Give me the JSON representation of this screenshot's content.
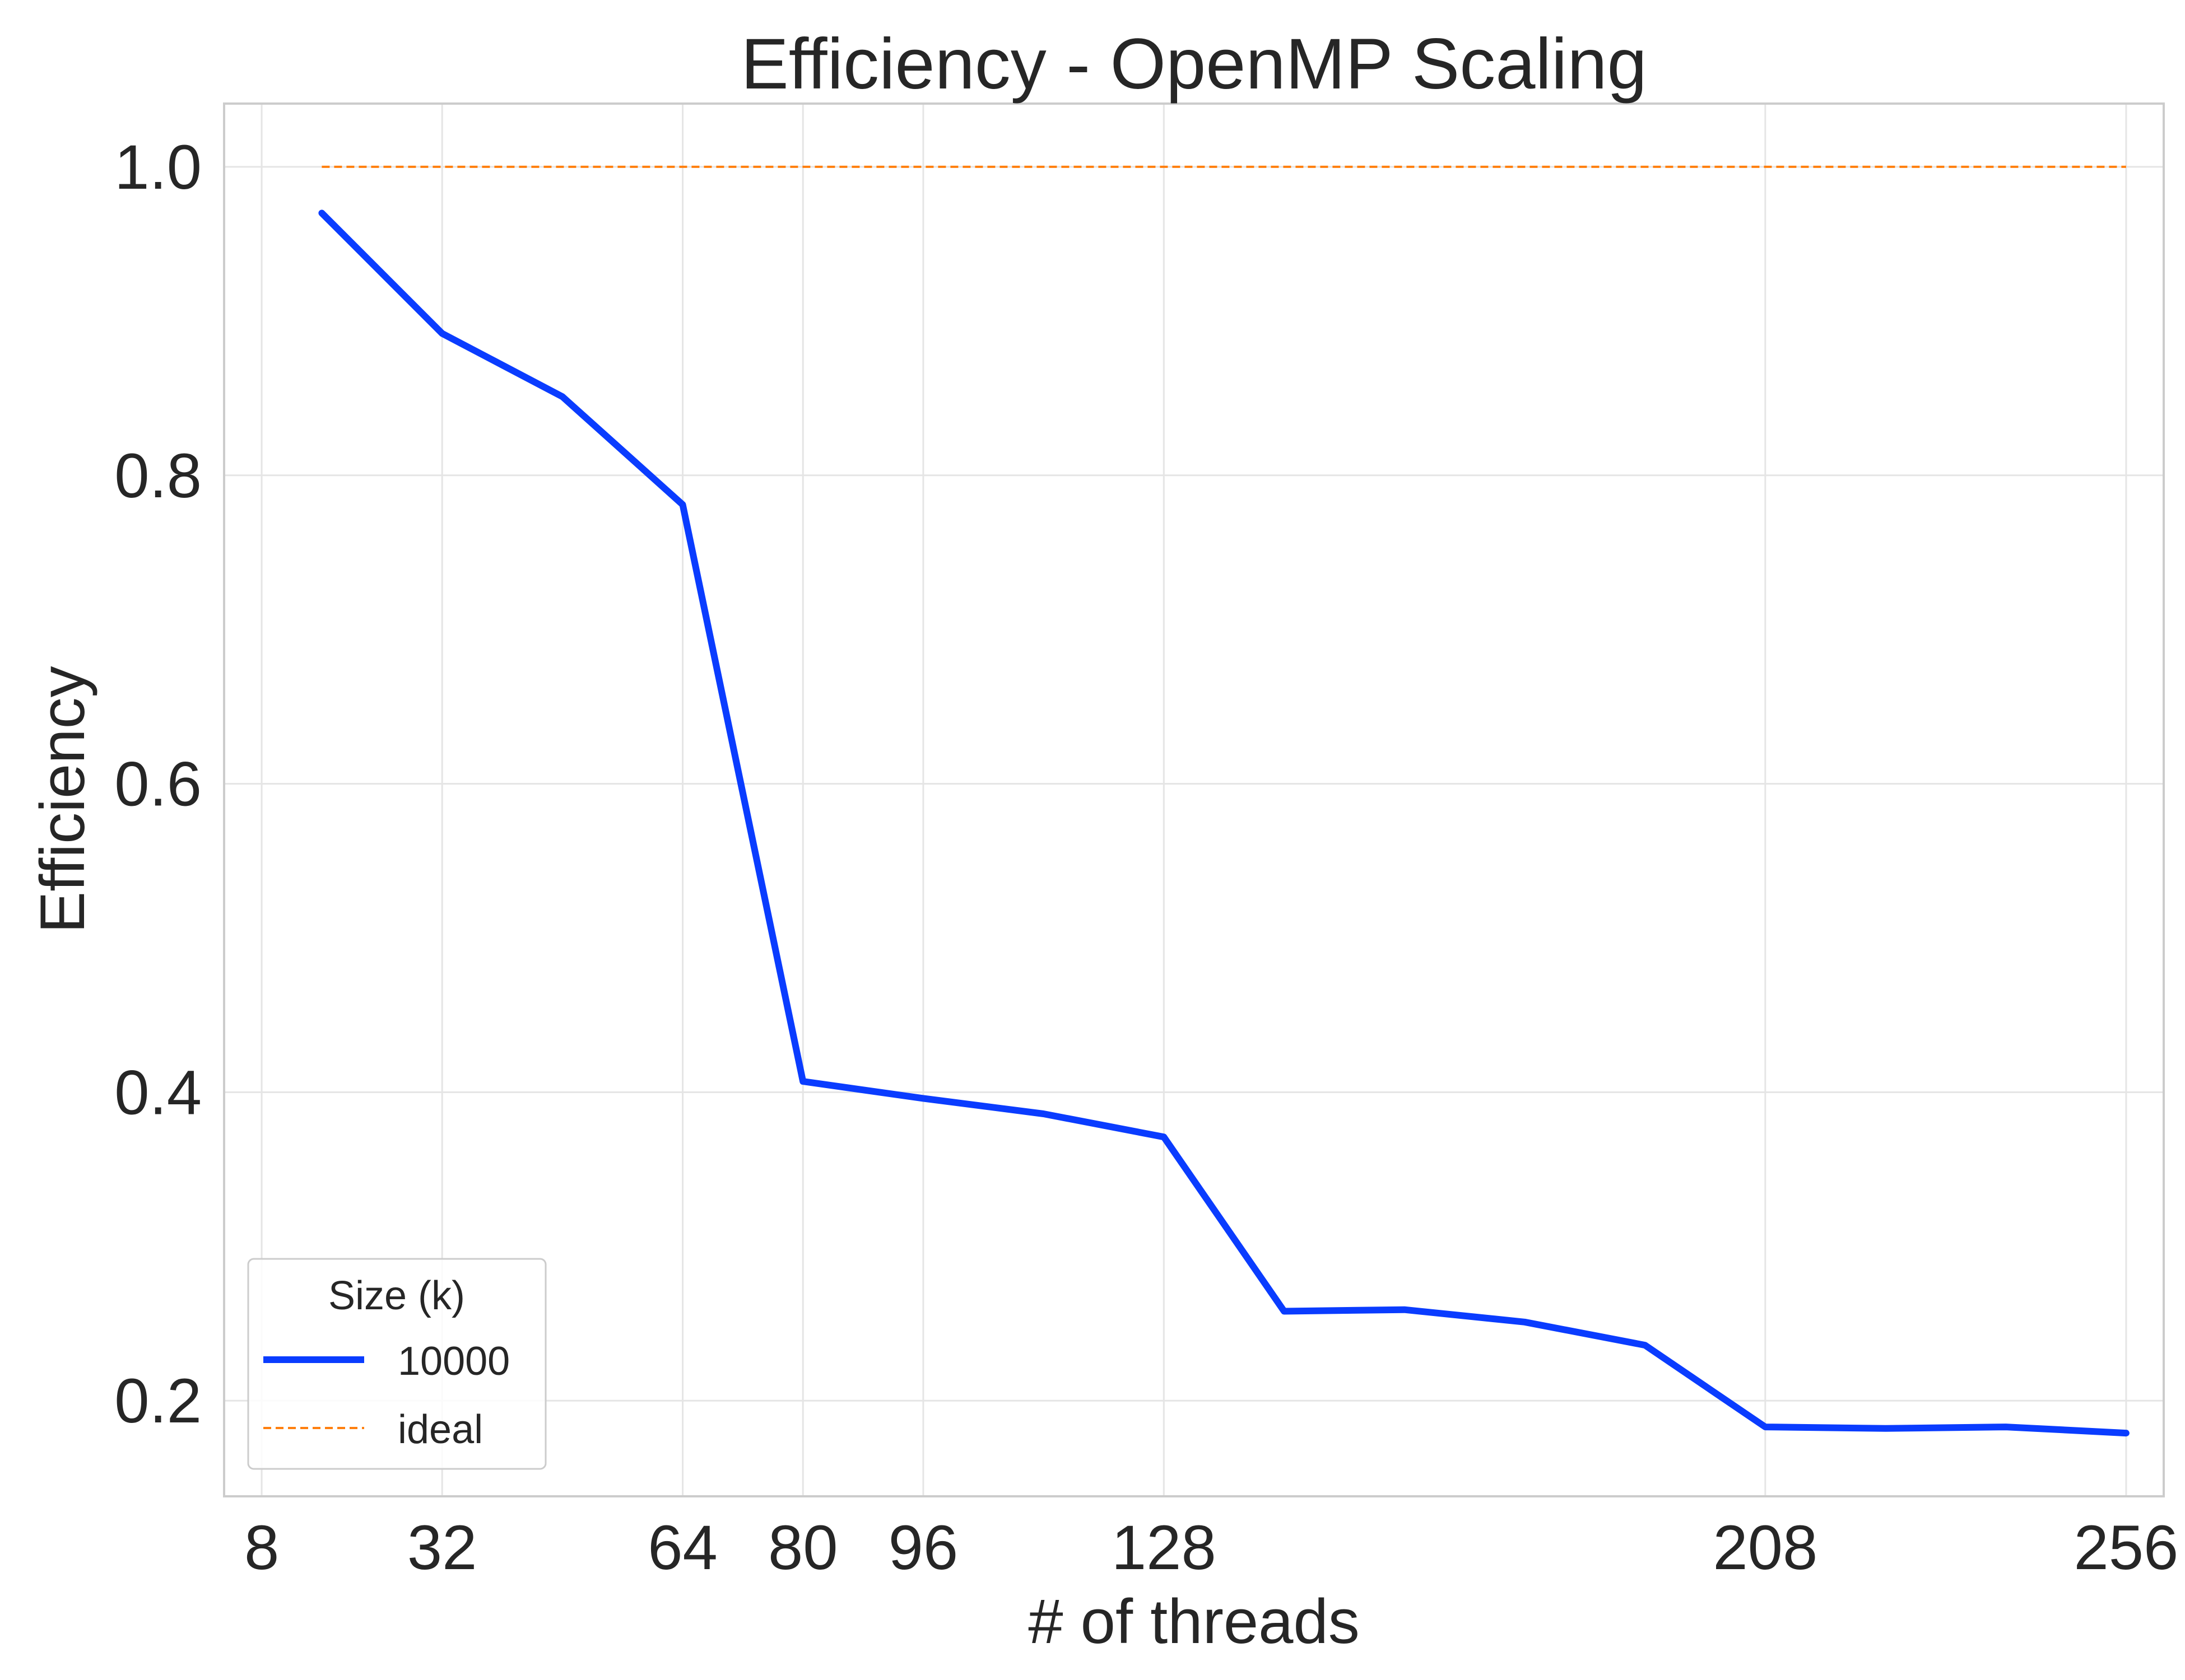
{
  "chart_data": {
    "type": "line",
    "title": "Efficiency - OpenMP Scaling",
    "xlabel": "# of threads",
    "ylabel": "Efficiency",
    "xlim": [
      3,
      261
    ],
    "ylim": [
      0.138,
      1.041
    ],
    "xticks": [
      8,
      32,
      64,
      80,
      96,
      128,
      208,
      256
    ],
    "yticks": [
      0.2,
      0.4,
      0.6,
      0.8,
      1.0
    ],
    "ytick_labels": [
      "0.2",
      "0.4",
      "0.6",
      "0.8",
      "1.0"
    ],
    "grid": true,
    "legend": {
      "title": "Size (k)",
      "position": "lower-left"
    },
    "series": [
      {
        "name": "10000",
        "color": "#0a3cff",
        "style": "solid",
        "x": [
          16,
          32,
          48,
          64,
          80,
          96,
          112,
          128,
          144,
          160,
          176,
          192,
          208,
          224,
          240,
          256
        ],
        "y": [
          0.97,
          0.892,
          0.851,
          0.781,
          0.407,
          0.396,
          0.386,
          0.371,
          0.258,
          0.259,
          0.251,
          0.236,
          0.183,
          0.182,
          0.183,
          0.179
        ]
      },
      {
        "name": "ideal",
        "color": "#ff7f0e",
        "style": "dashed",
        "x": [
          16,
          256
        ],
        "y": [
          1.0,
          1.0
        ]
      }
    ]
  }
}
